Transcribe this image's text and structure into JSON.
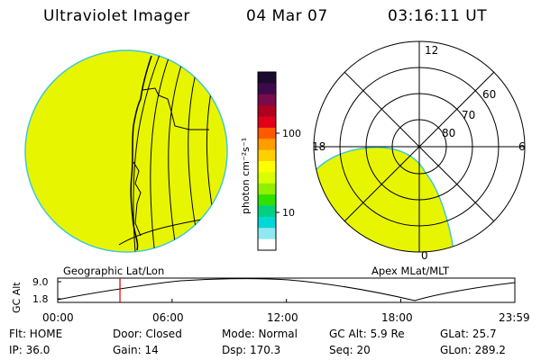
{
  "header": {
    "title": "Ultraviolet Imager",
    "date": "04 Mar 07",
    "time": "03:16:11 UT"
  },
  "colorbar": {
    "unit_label": "photon cm⁻²s⁻¹",
    "ticks": [
      "100",
      "10"
    ],
    "colors": [
      "#1a0a2e",
      "#3d0a4a",
      "#7a0a4a",
      "#b00020",
      "#e0001a",
      "#ff5a00",
      "#ff9c00",
      "#ffd000",
      "#ffff00",
      "#d8ff00",
      "#90f000",
      "#30e000",
      "#00d080",
      "#00d8d8",
      "#90e8f0",
      "#ffffff"
    ]
  },
  "left_panel": {
    "label": "Geographic Lat/Lon",
    "fill_color": "#e8f500"
  },
  "right_panel": {
    "label": "Apex  MLat/MLT",
    "mlt_labels": [
      "12",
      "18",
      "6",
      "0"
    ],
    "lat_labels": [
      "60",
      "70",
      "80"
    ]
  },
  "timeline": {
    "y_axis_label": "GC Alt",
    "y_ticks": [
      "9.0",
      "1.8"
    ],
    "x_ticks": [
      "00:00",
      "06:00",
      "12:00",
      "18:00",
      "23:59"
    ],
    "current_time": "03:16",
    "marker_color": "#d00000"
  },
  "info": {
    "flt": "Flt: HOME",
    "ip": "IP: 36.0",
    "door": "Door: Closed",
    "gain": "Gain: 14",
    "mode": "Mode: Normal",
    "dsp": "Dsp:  170.3",
    "gcalt": "GC Alt: 5.9 Re",
    "seq": "Seq: 20",
    "glat": "GLat:  25.7",
    "glon": "GLon: 289.2"
  }
}
